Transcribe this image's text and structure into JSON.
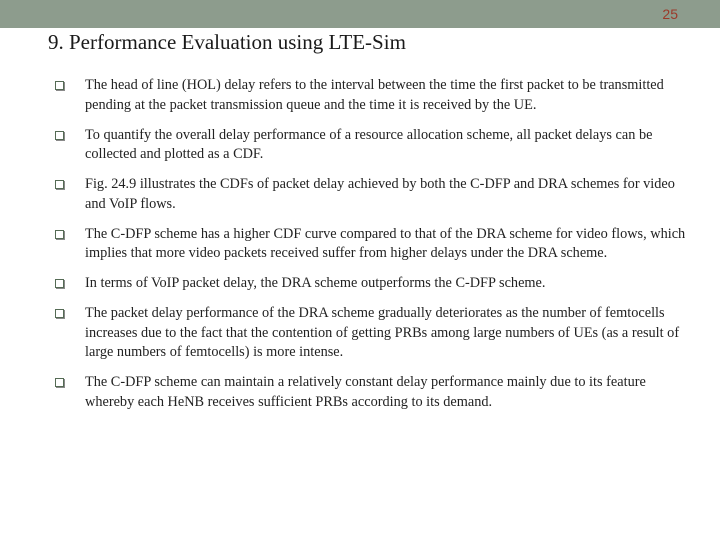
{
  "page_number": "25",
  "title": "9. Performance Evaluation using LTE-Sim",
  "bullets": [
    "The head of line (HOL) delay refers to the interval between the time the first packet to be transmitted pending at the packet transmission queue and the time it is received by the UE.",
    "To quantify the overall delay performance of a resource allocation scheme, all packet delays can be collected and plotted as a CDF.",
    "Fig. 24.9 illustrates the CDFs of packet delay achieved by both the C-DFP and DRA schemes for video and VoIP flows.",
    "The C-DFP scheme has a higher CDF curve compared to that of the DRA scheme for video flows, which implies that more video packets received suffer from higher delays under the DRA scheme.",
    "In terms of VoIP packet delay, the DRA scheme outperforms the C-DFP scheme.",
    "The packet delay performance of the DRA scheme gradually deteriorates as the number of femtocells increases due to the fact that the contention of getting PRBs among large numbers of UEs (as a result of large numbers of femtocells) is more intense.",
    "The C-DFP scheme can maintain a relatively constant delay performance mainly due to its feature whereby each HeNB receives sufficient PRBs according to its demand."
  ]
}
